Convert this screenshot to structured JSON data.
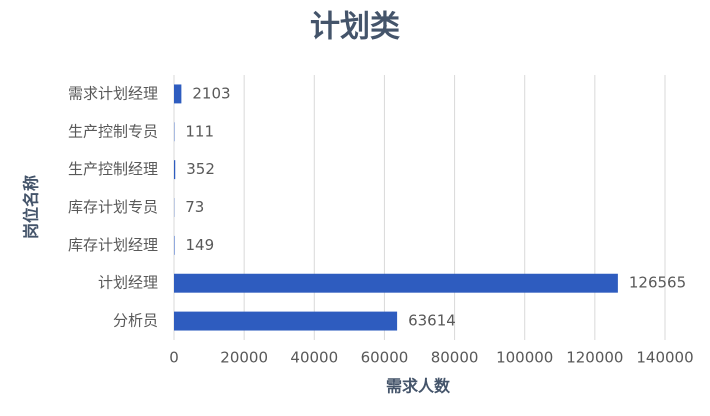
{
  "chart_data": {
    "type": "bar",
    "orientation": "horizontal",
    "title": "计划类",
    "x_label": "需求人数",
    "y_label": "岗位名称",
    "categories": [
      "需求计划经理",
      "生产控制专员",
      "生产控制经理",
      "库存计划专员",
      "库存计划经理",
      "计划经理",
      "分析员"
    ],
    "values": [
      2103,
      111,
      352,
      73,
      149,
      126565,
      63614
    ],
    "color": "#2e5cbf",
    "xlim": [
      0,
      140000
    ],
    "xticks": [
      0,
      20000,
      40000,
      60000,
      80000,
      100000,
      120000,
      140000
    ],
    "grid": true
  }
}
